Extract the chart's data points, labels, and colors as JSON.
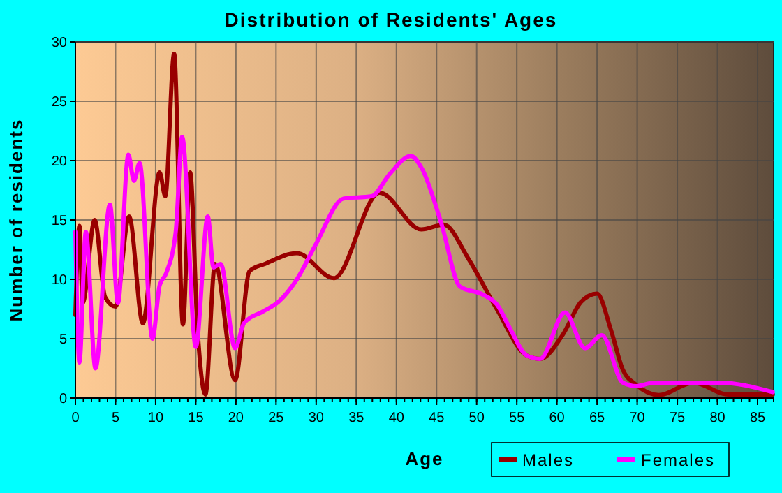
{
  "chart_data": {
    "type": "line",
    "title": "Distribution of Residents' Ages",
    "xlabel": "Age",
    "ylabel": "Number of residents",
    "xlim": [
      0,
      87
    ],
    "xticks": [
      0,
      5,
      10,
      15,
      20,
      25,
      30,
      35,
      40,
      45,
      50,
      55,
      60,
      65,
      70,
      75,
      80,
      85
    ],
    "ylim": [
      0,
      30
    ],
    "yticks": [
      0,
      5,
      10,
      15,
      20,
      25,
      30
    ],
    "grid": true,
    "legend": "bottom right",
    "line_style": "solid",
    "marker": "none",
    "series": [
      {
        "name": "Males",
        "color": "#990000",
        "x": [
          0,
          0.5,
          0.9,
          2.4,
          3.7,
          5,
          6.7,
          8.4,
          10.5,
          11.2,
          12.3,
          13.4,
          14.3,
          15.2,
          16.2,
          17.4,
          19.9,
          21.7,
          23.6,
          27.6,
          32.2,
          37.9,
          43.1,
          45.9,
          49,
          52.5,
          56.2,
          57.9,
          60.7,
          63,
          65,
          66.7,
          68.2,
          69.9,
          72.7,
          77,
          81.3,
          86.9
        ],
        "values": [
          7,
          14.5,
          8,
          15,
          8.5,
          7.7,
          15.3,
          6.3,
          19,
          17,
          29,
          6.2,
          19,
          6,
          0.3,
          11.3,
          1.5,
          10.7,
          11.3,
          12.2,
          10.1,
          17.3,
          14.2,
          14.6,
          11.7,
          7.5,
          3.6,
          3.3,
          5.3,
          8.1,
          8.8,
          5.8,
          2.4,
          1.1,
          0.25,
          1.3,
          0.3,
          0.3
        ]
      },
      {
        "name": "Females",
        "color": "#ff00ff",
        "x": [
          0,
          0.5,
          1.3,
          2.5,
          4.3,
          5.3,
          6.6,
          7.3,
          8,
          9.6,
          10.5,
          11.3,
          12.5,
          13.3,
          15,
          16.5,
          17.2,
          18.1,
          19.9,
          21,
          23.4,
          25.3,
          27.6,
          30,
          33.4,
          36.9,
          39.2,
          41.8,
          43.2,
          45.6,
          47.9,
          50.8,
          52.5,
          54.2,
          56.2,
          57.9,
          61,
          63.5,
          65.6,
          68.2,
          69.9,
          72.1,
          80.2,
          86.9
        ],
        "values": [
          14,
          3,
          14,
          2.5,
          16.3,
          8,
          20.5,
          18.3,
          19.8,
          5,
          9.5,
          10.5,
          14,
          22,
          4.3,
          15.3,
          11,
          11.3,
          4.2,
          6.3,
          7.3,
          8.1,
          10,
          13,
          16.8,
          17,
          18.9,
          20.4,
          19.3,
          14.7,
          9.4,
          8.7,
          7.9,
          5.8,
          3.6,
          3.3,
          7.2,
          4.2,
          5.3,
          1.3,
          1,
          1.3,
          1.3,
          0.5
        ]
      }
    ]
  }
}
